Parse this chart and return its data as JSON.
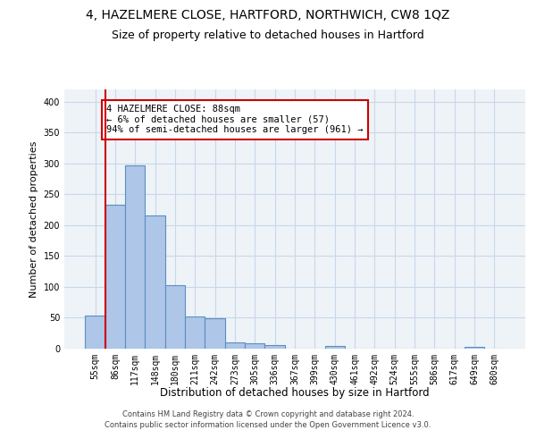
{
  "title": "4, HAZELMERE CLOSE, HARTFORD, NORTHWICH, CW8 1QZ",
  "subtitle": "Size of property relative to detached houses in Hartford",
  "xlabel": "Distribution of detached houses by size in Hartford",
  "ylabel": "Number of detached properties",
  "categories": [
    "55sqm",
    "86sqm",
    "117sqm",
    "148sqm",
    "180sqm",
    "211sqm",
    "242sqm",
    "273sqm",
    "305sqm",
    "336sqm",
    "367sqm",
    "399sqm",
    "430sqm",
    "461sqm",
    "492sqm",
    "524sqm",
    "555sqm",
    "586sqm",
    "617sqm",
    "649sqm",
    "680sqm"
  ],
  "values": [
    53,
    233,
    297,
    216,
    103,
    52,
    49,
    10,
    9,
    6,
    0,
    0,
    5,
    0,
    0,
    0,
    0,
    0,
    0,
    3,
    0
  ],
  "bar_color": "#aec6e8",
  "bar_edge_color": "#5a8fc0",
  "grid_color": "#c8d8e8",
  "bg_color": "#eef3f8",
  "vline_color": "#cc0000",
  "annotation_text": "4 HAZELMERE CLOSE: 88sqm\n← 6% of detached houses are smaller (57)\n94% of semi-detached houses are larger (961) →",
  "annotation_box_color": "#ffffff",
  "annotation_box_edge": "#cc0000",
  "footer": "Contains HM Land Registry data © Crown copyright and database right 2024.\nContains public sector information licensed under the Open Government Licence v3.0.",
  "ylim": [
    0,
    420
  ],
  "title_fontsize": 10,
  "subtitle_fontsize": 9,
  "ylabel_fontsize": 8,
  "xlabel_fontsize": 8.5,
  "tick_fontsize": 7,
  "footer_fontsize": 6,
  "ann_fontsize": 7.5
}
